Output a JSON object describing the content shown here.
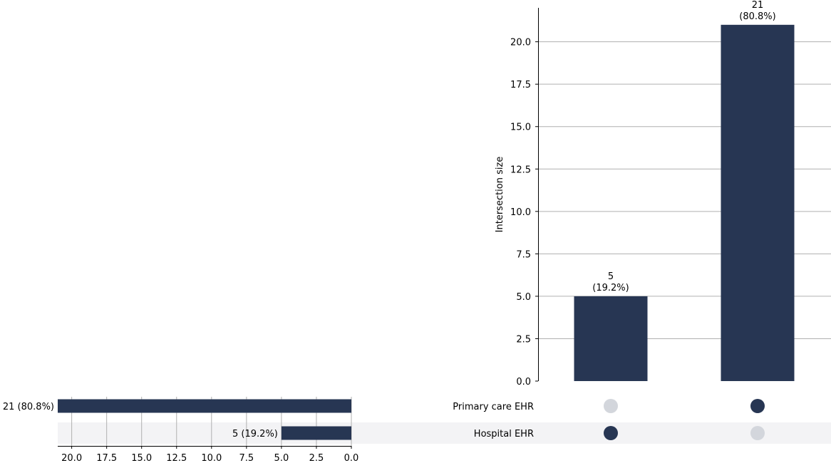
{
  "chart_data": {
    "type": "bar",
    "subtype": "upset",
    "bar_color": "#273653",
    "inactive_dot_color": "#d3d6dc",
    "shade_color": "#f3f3f5",
    "grid": true,
    "sets": [
      "Primary care EHR",
      "Hospital EHR"
    ],
    "set_sizes": [
      21,
      5
    ],
    "set_size_labels": [
      "21 (80.8%)",
      "5 (19.2%)"
    ],
    "set_size_axis": {
      "reversed": true,
      "xlim": [
        0,
        21
      ],
      "ticks": [
        20.0,
        17.5,
        15.0,
        12.5,
        10.0,
        7.5,
        5.0,
        2.5,
        0.0
      ],
      "tick_labels": [
        "20.0",
        "17.5",
        "15.0",
        "12.5",
        "10.0",
        "7.5",
        "5.0",
        "2.5",
        "0.0"
      ]
    },
    "intersections": [
      {
        "members": [
          false,
          true
        ],
        "value": 5,
        "label_count": "5",
        "label_pct": "(19.2%)"
      },
      {
        "members": [
          true,
          false
        ],
        "value": 21,
        "label_count": "21",
        "label_pct": "(80.8%)"
      }
    ],
    "ylabel": "Intersection size",
    "ylim": [
      0,
      22
    ],
    "yticks": [
      0.0,
      2.5,
      5.0,
      7.5,
      10.0,
      12.5,
      15.0,
      17.5,
      20.0
    ],
    "ytick_labels": [
      "0.0",
      "2.5",
      "5.0",
      "7.5",
      "10.0",
      "12.5",
      "15.0",
      "17.5",
      "20.0"
    ]
  }
}
